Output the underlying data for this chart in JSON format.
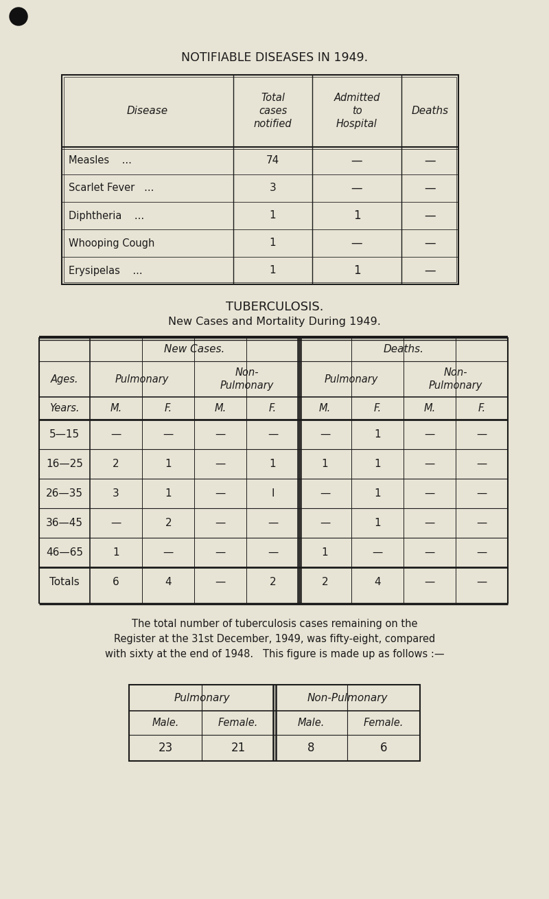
{
  "bg_color": "#e8e4d5",
  "title1": "NOTIFIABLE DISEASES IN 1949.",
  "table1_rows": [
    [
      "Measles    ...",
      "74",
      "—",
      "—"
    ],
    [
      "Scarlet Fever   ...",
      "3",
      "—",
      "—"
    ],
    [
      "Diphtheria    ...",
      "1",
      "1",
      "—"
    ],
    [
      "Whooping Cough",
      "1",
      "—",
      "—"
    ],
    [
      "Erysipelas    ...",
      "1",
      "1",
      "—"
    ]
  ],
  "title2": "TUBERCULOSIS.",
  "title2_sub": "New Cases and Mortality During 1949.",
  "tb_rows": [
    [
      "5—15",
      "—",
      "—",
      "—",
      "—",
      "—",
      "1",
      "—",
      "—"
    ],
    [
      "16—25",
      "2",
      "1",
      "—",
      "1",
      "1",
      "1",
      "—",
      "—"
    ],
    [
      "26—35",
      "3",
      "1",
      "—",
      "I",
      "—",
      "1",
      "—",
      "—"
    ],
    [
      "36—45",
      "—",
      "2",
      "—",
      "—",
      "—",
      "1",
      "—",
      "—"
    ],
    [
      "46—65",
      "1",
      "—",
      "—",
      "—",
      "1",
      "—",
      "—",
      "—"
    ]
  ],
  "tb_totals": [
    "Totals",
    "6",
    "4",
    "—",
    "2",
    "2",
    "4",
    "—",
    "—"
  ],
  "paragraph_lines": [
    "The total number of tuberculosis cases remaining on the",
    "Register at the 31st December, 1949, was fifty-eight, compared",
    "with sixty at the end of 1948.   This figure is made up as follows :—"
  ],
  "summary_values": [
    "23",
    "21",
    "8",
    "6"
  ],
  "text_color": "#1a1a1a"
}
